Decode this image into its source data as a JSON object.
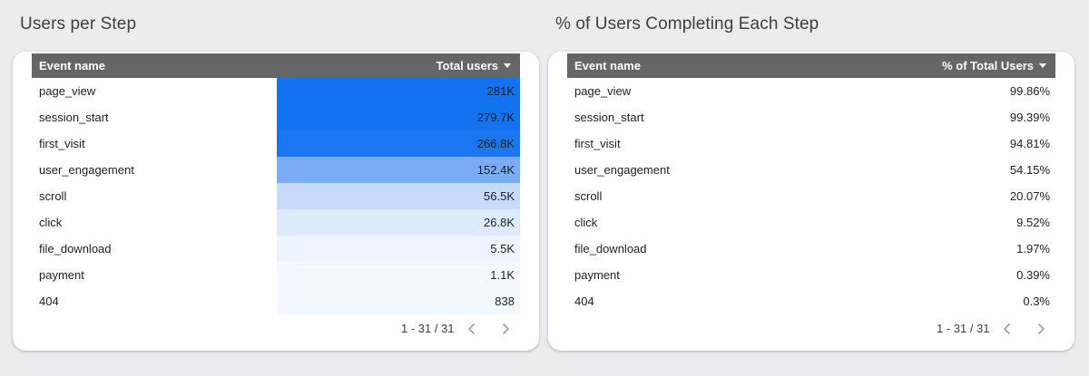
{
  "left_panel": {
    "title": "Users per Step",
    "header": {
      "name": "Event name",
      "metric": "Total users"
    },
    "rows": [
      {
        "name": "page_view",
        "value": "281K",
        "heat": "#1473f0"
      },
      {
        "name": "session_start",
        "value": "279.7K",
        "heat": "#1473f0"
      },
      {
        "name": "first_visit",
        "value": "266.8K",
        "heat": "#1a77f1"
      },
      {
        "name": "user_engagement",
        "value": "152.4K",
        "heat": "#7aadf6"
      },
      {
        "name": "scroll",
        "value": "56.5K",
        "heat": "#c6dbfb"
      },
      {
        "name": "click",
        "value": "26.8K",
        "heat": "#deebfd"
      },
      {
        "name": "file_download",
        "value": "5.5K",
        "heat": "#eef4fe"
      },
      {
        "name": "payment",
        "value": "1.1K",
        "heat": "#f3f7fe"
      },
      {
        "name": "404",
        "value": "838",
        "heat": "#f3f7fe"
      }
    ],
    "pager": {
      "text": "1 - 31 / 31"
    }
  },
  "right_panel": {
    "title": "% of Users Completing Each Step",
    "header": {
      "name": "Event name",
      "metric": "% of Total Users"
    },
    "rows": [
      {
        "name": "page_view",
        "value": "99.86%"
      },
      {
        "name": "session_start",
        "value": "99.39%"
      },
      {
        "name": "first_visit",
        "value": "94.81%"
      },
      {
        "name": "user_engagement",
        "value": "54.15%"
      },
      {
        "name": "scroll",
        "value": "20.07%"
      },
      {
        "name": "click",
        "value": "9.52%"
      },
      {
        "name": "file_download",
        "value": "1.97%"
      },
      {
        "name": "payment",
        "value": "0.39%"
      },
      {
        "name": "404",
        "value": "0.3%"
      }
    ],
    "pager": {
      "text": "1 - 31 / 31"
    }
  },
  "icons": {
    "sort": "sort-descending-icon",
    "prev": "chevron-left-icon",
    "next": "chevron-right-icon"
  }
}
